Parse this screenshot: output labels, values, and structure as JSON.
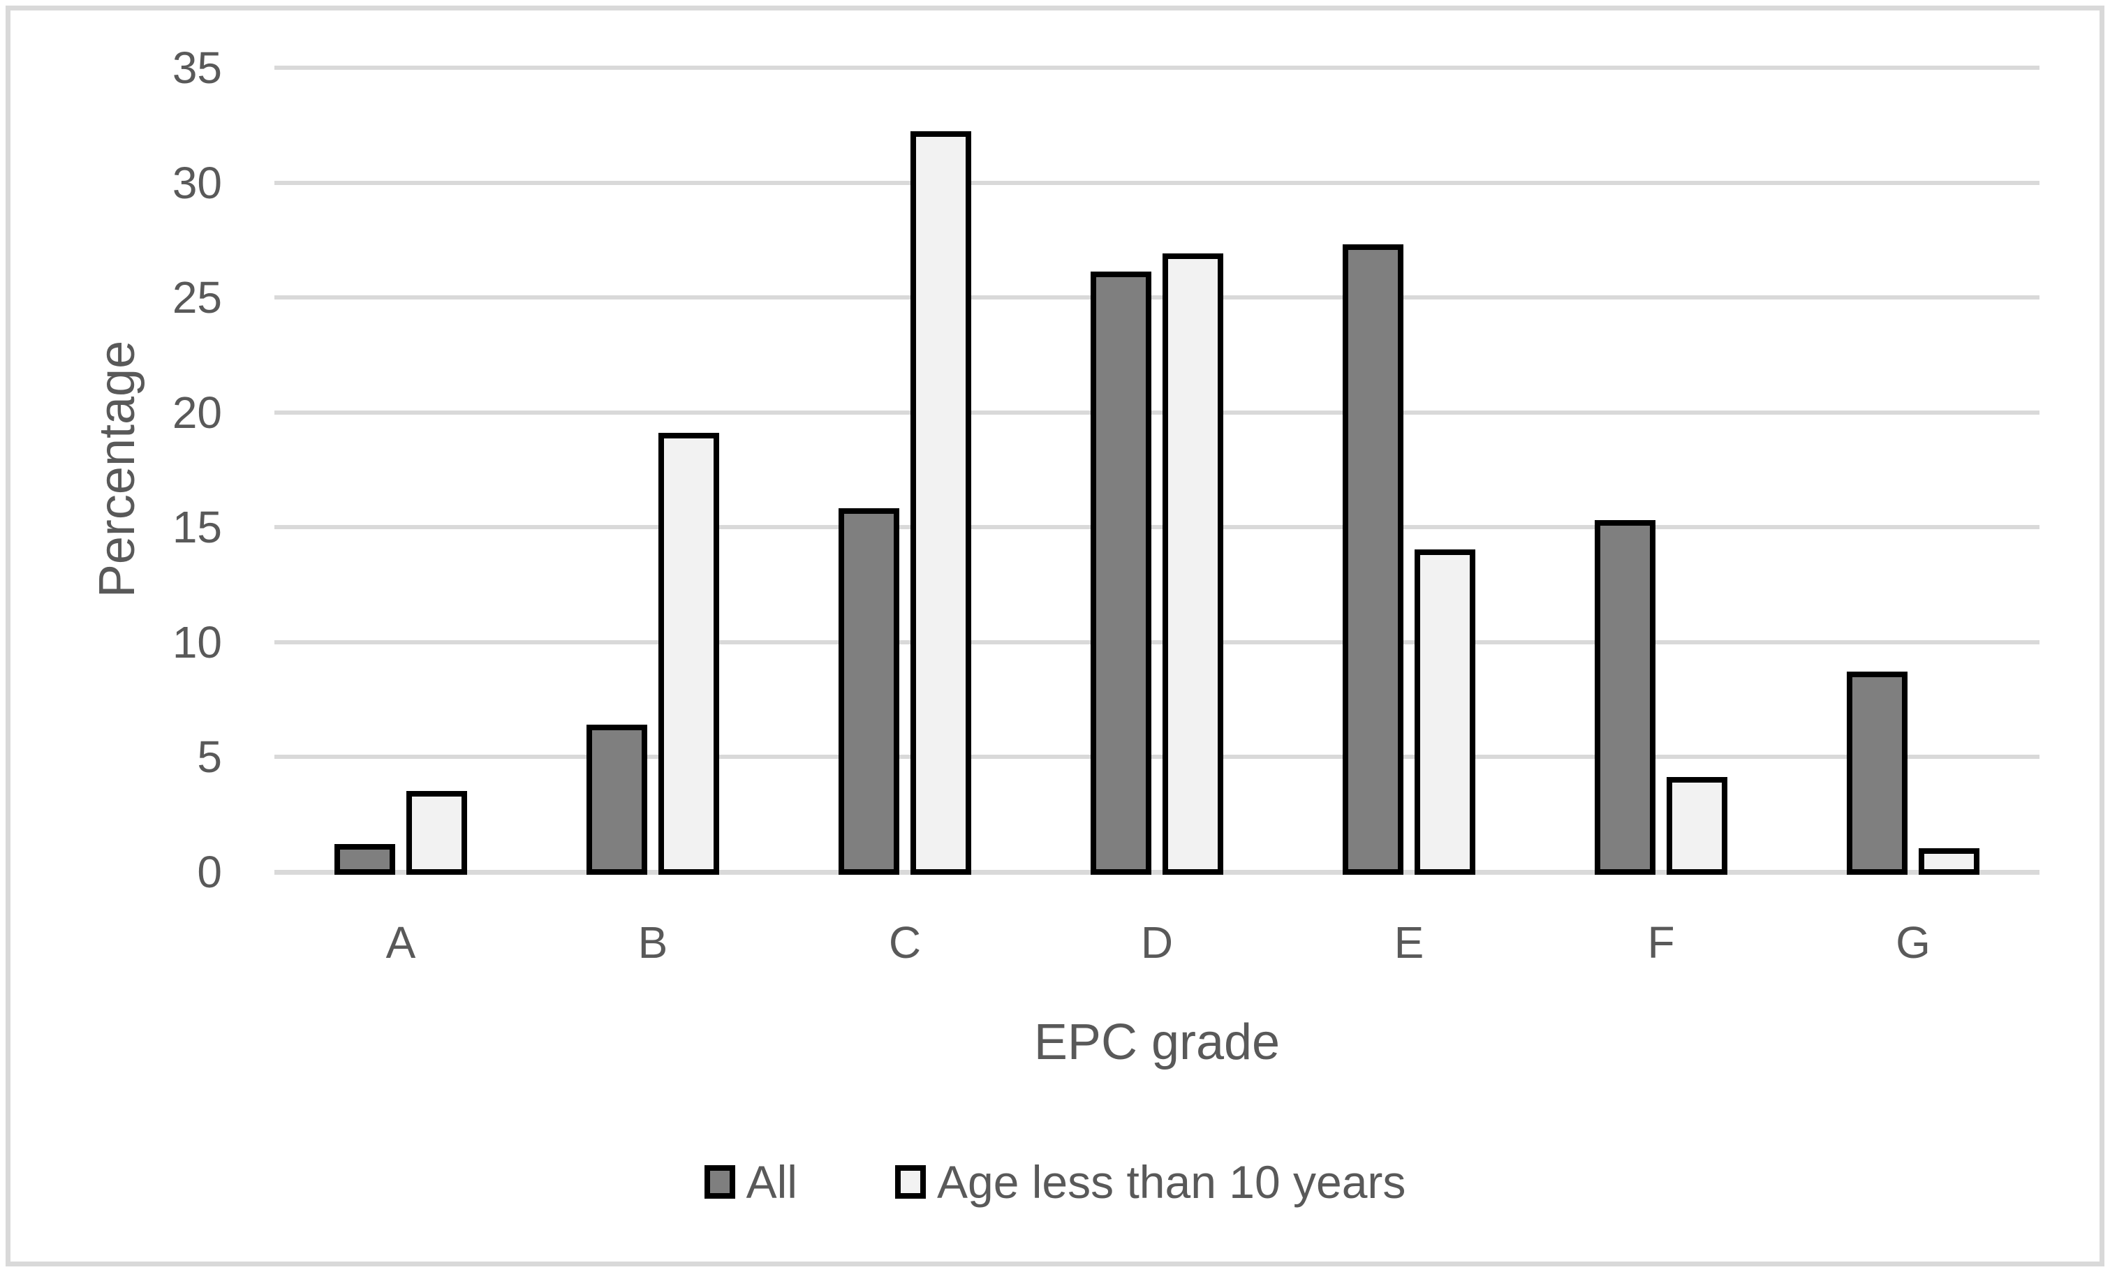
{
  "chart_data": {
    "type": "bar",
    "title": "",
    "categories": [
      "A",
      "B",
      "C",
      "D",
      "E",
      "F",
      "G"
    ],
    "series": [
      {
        "name": "All",
        "fill_color": "#7f7f7f",
        "border_color": "#000000",
        "values": [
          1.1,
          6.3,
          15.7,
          26.0,
          27.2,
          15.2,
          8.6
        ]
      },
      {
        "name": "Age less than 10 years",
        "fill_color": "#f2f2f2",
        "border_color": "#000000",
        "values": [
          3.4,
          19.0,
          32.1,
          26.8,
          13.9,
          4.0,
          0.9
        ]
      }
    ],
    "xlabel": "EPC grade",
    "ylabel": "Percentage",
    "ylim": [
      0,
      35
    ],
    "ytick_step": 5,
    "yticks": [
      "0",
      "5",
      "10",
      "15",
      "20",
      "25",
      "30",
      "35"
    ],
    "grid": true,
    "gridline_color": "#d9d9d9",
    "axis_text_color": "#595959",
    "chart_border_color": "#d9d9d9",
    "legend_position": "bottom",
    "legend_markers": [
      "filled-gray-swatch-icon",
      "filled-light-swatch-icon"
    ]
  }
}
